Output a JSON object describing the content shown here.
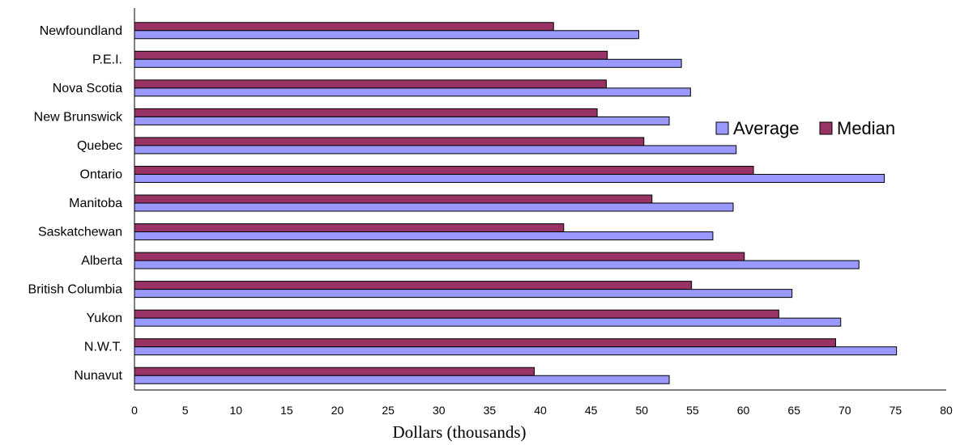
{
  "chart_data": {
    "type": "bar",
    "orientation": "horizontal",
    "categories": [
      "Newfoundland",
      "P.E.I.",
      "Nova Scotia",
      "New Brunswick",
      "Quebec",
      "Ontario",
      "Manitoba",
      "Saskatchewan",
      "Alberta",
      "British Columbia",
      "Yukon",
      "N.W.T.",
      "Nunavut"
    ],
    "series": [
      {
        "name": "Average",
        "color": "#9999ff",
        "values": [
          49.7,
          53.9,
          54.8,
          52.7,
          59.3,
          73.9,
          59.0,
          57.0,
          71.4,
          64.8,
          69.6,
          75.1,
          52.7
        ]
      },
      {
        "name": "Median",
        "color": "#993366",
        "values": [
          41.3,
          46.6,
          46.5,
          45.6,
          50.2,
          61.0,
          51.0,
          42.3,
          60.1,
          54.9,
          63.5,
          69.1,
          39.4
        ]
      }
    ],
    "xlabel": "Dollars (thousands)",
    "xlim": [
      0,
      80
    ],
    "xticks": [
      "0",
      "5",
      "10",
      "15",
      "20",
      "25",
      "30",
      "35",
      "40",
      "45",
      "50",
      "55",
      "60",
      "65",
      "70",
      "75",
      "80"
    ],
    "grid": false,
    "legend_position": "right"
  }
}
